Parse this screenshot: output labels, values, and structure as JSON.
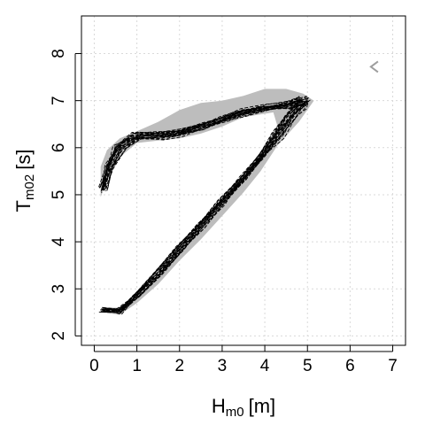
{
  "chart_data": {
    "type": "line",
    "xlabel": {
      "main": "H",
      "sub": "m0",
      "unit": "[m]"
    },
    "ylabel": {
      "main": "T",
      "sub": "m02",
      "unit": "[s]"
    },
    "xlim": [
      -0.3,
      7.3
    ],
    "ylim": [
      1.8,
      8.8
    ],
    "xticks": [
      "0",
      "1",
      "2",
      "3",
      "4",
      "5",
      "6",
      "7"
    ],
    "yticks": [
      "2",
      "3",
      "4",
      "5",
      "6",
      "7",
      "8"
    ],
    "grid": true,
    "colors": {
      "envelope": "#bdbdbd",
      "members": "#000000",
      "marker": "#9e9e9e",
      "grid": "#d9d9d9"
    },
    "envelope": {
      "name": "",
      "upper": [
        [
          0.15,
          5.6
        ],
        [
          0.3,
          5.95
        ],
        [
          0.6,
          6.2
        ],
        [
          1.0,
          6.35
        ],
        [
          1.5,
          6.55
        ],
        [
          2.0,
          6.8
        ],
        [
          2.5,
          6.95
        ],
        [
          3.0,
          7.0
        ],
        [
          3.5,
          7.1
        ],
        [
          4.0,
          7.25
        ],
        [
          4.5,
          7.25
        ],
        [
          4.9,
          7.15
        ],
        [
          5.15,
          7.0
        ]
      ],
      "lower": [
        [
          5.15,
          7.0
        ],
        [
          4.8,
          6.55
        ],
        [
          4.3,
          6.05
        ],
        [
          3.9,
          5.5
        ],
        [
          3.5,
          5.05
        ],
        [
          3.0,
          4.55
        ],
        [
          2.5,
          4.05
        ],
        [
          2.0,
          3.6
        ],
        [
          1.5,
          3.1
        ],
        [
          1.0,
          2.7
        ],
        [
          0.6,
          2.45
        ],
        [
          0.2,
          2.5
        ],
        [
          0.2,
          2.6
        ],
        [
          0.7,
          2.6
        ],
        [
          1.2,
          3.0
        ],
        [
          1.7,
          3.5
        ],
        [
          2.2,
          4.05
        ],
        [
          2.7,
          4.6
        ],
        [
          3.2,
          5.1
        ],
        [
          3.6,
          5.55
        ],
        [
          3.95,
          5.95
        ],
        [
          4.3,
          6.45
        ],
        [
          4.2,
          6.75
        ],
        [
          3.5,
          6.65
        ],
        [
          3.0,
          6.45
        ],
        [
          2.5,
          6.3
        ],
        [
          2.0,
          6.2
        ],
        [
          1.5,
          6.15
        ],
        [
          1.0,
          6.1
        ],
        [
          0.6,
          5.8
        ],
        [
          0.3,
          5.3
        ],
        [
          0.15,
          4.95
        ]
      ]
    },
    "ensemble": {
      "count": 24,
      "base_path": [
        [
          0.2,
          2.55
        ],
        [
          0.6,
          2.52
        ],
        [
          1.0,
          2.85
        ],
        [
          1.5,
          3.35
        ],
        [
          2.0,
          3.85
        ],
        [
          2.5,
          4.35
        ],
        [
          3.0,
          4.85
        ],
        [
          3.5,
          5.35
        ],
        [
          3.9,
          5.8
        ],
        [
          4.3,
          6.3
        ],
        [
          4.6,
          6.65
        ],
        [
          4.85,
          6.9
        ],
        [
          4.9,
          7.0
        ],
        [
          4.5,
          6.9
        ],
        [
          4.0,
          6.85
        ],
        [
          3.5,
          6.75
        ],
        [
          3.0,
          6.6
        ],
        [
          2.5,
          6.45
        ],
        [
          2.0,
          6.3
        ],
        [
          1.5,
          6.25
        ],
        [
          1.0,
          6.25
        ],
        [
          0.6,
          6.0
        ],
        [
          0.35,
          5.6
        ],
        [
          0.2,
          5.1
        ]
      ]
    },
    "marker": {
      "x": 6.55,
      "y": 7.72
    }
  }
}
